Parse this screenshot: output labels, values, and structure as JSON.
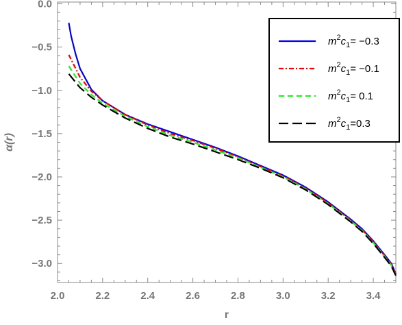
{
  "chart_data": {
    "type": "line",
    "title": "",
    "xlabel": "r",
    "ylabel": "α(r)",
    "xlim": [
      2.0,
      3.5
    ],
    "ylim": [
      -3.22,
      0.02
    ],
    "x_ticks": [
      2.0,
      2.2,
      2.4,
      2.6,
      2.8,
      3.0,
      3.2,
      3.4
    ],
    "x_tick_labels": [
      "2.0",
      "2.2",
      "2.4",
      "2.6",
      "2.8",
      "3.0",
      "3.2",
      "3.4"
    ],
    "y_ticks": [
      0.0,
      -0.5,
      -1.0,
      -1.5,
      -2.0,
      -2.5,
      -3.0
    ],
    "y_tick_labels": [
      "0.0",
      "−0.5",
      "−1.0",
      "−1.5",
      "−2.0",
      "−2.5",
      "−3.0"
    ],
    "grid": false,
    "legend_position": "top-right",
    "series": [
      {
        "name": "m²c₁= −0.3",
        "legend_parts": {
          "m": "m",
          "sup": "2",
          "c": "c",
          "sub": "1",
          "rest": "= −0.3"
        },
        "color": "#0000ee",
        "dash": "solid",
        "x": [
          2.05,
          2.06,
          2.08,
          2.1,
          2.15,
          2.2,
          2.3,
          2.4,
          2.5,
          2.6,
          2.7,
          2.8,
          2.9,
          3.0,
          3.1,
          3.2,
          3.3,
          3.35,
          3.4,
          3.45,
          3.48,
          3.5
        ],
        "y": [
          -0.22,
          -0.37,
          -0.58,
          -0.75,
          -0.99,
          -1.12,
          -1.28,
          -1.39,
          -1.48,
          -1.57,
          -1.66,
          -1.76,
          -1.87,
          -1.98,
          -2.12,
          -2.29,
          -2.49,
          -2.6,
          -2.74,
          -2.9,
          -3.0,
          -3.12
        ]
      },
      {
        "name": "m²c₁= −0.1",
        "legend_parts": {
          "m": "m",
          "sup": "2",
          "c": "c",
          "sub": "1",
          "rest": "= −0.1"
        },
        "color": "#ee0000",
        "dash": "dashdot",
        "x": [
          2.05,
          2.1,
          2.15,
          2.2,
          2.3,
          2.4,
          2.5,
          2.6,
          2.7,
          2.8,
          2.9,
          3.0,
          3.1,
          3.2,
          3.3,
          3.35,
          3.4,
          3.45,
          3.48,
          3.5
        ],
        "y": [
          -0.59,
          -0.85,
          -1.01,
          -1.12,
          -1.28,
          -1.4,
          -1.5,
          -1.58,
          -1.67,
          -1.77,
          -1.88,
          -1.99,
          -2.13,
          -2.3,
          -2.5,
          -2.61,
          -2.75,
          -2.91,
          -3.01,
          -3.12
        ]
      },
      {
        "name": "m²c₁= 0.1",
        "legend_parts": {
          "m": "m",
          "sup": "2",
          "c": "c",
          "sub": "1",
          "rest": "= 0.1"
        },
        "color": "#22ee22",
        "dash": "dashed",
        "x": [
          2.05,
          2.1,
          2.15,
          2.2,
          2.3,
          2.4,
          2.5,
          2.6,
          2.7,
          2.8,
          2.9,
          3.0,
          3.1,
          3.2,
          3.3,
          3.35,
          3.4,
          3.45,
          3.48,
          3.5
        ],
        "y": [
          -0.72,
          -0.92,
          -1.05,
          -1.15,
          -1.3,
          -1.42,
          -1.52,
          -1.6,
          -1.69,
          -1.78,
          -1.89,
          -2.0,
          -2.14,
          -2.31,
          -2.51,
          -2.62,
          -2.76,
          -2.92,
          -3.02,
          -3.14
        ]
      },
      {
        "name": "m²c₁=0.3",
        "legend_parts": {
          "m": "m",
          "sup": "2",
          "c": "c",
          "sub": "1",
          "rest": "=0.3"
        },
        "color": "#000000",
        "dash": "longdash",
        "x": [
          2.05,
          2.1,
          2.15,
          2.2,
          2.3,
          2.4,
          2.5,
          2.6,
          2.7,
          2.8,
          2.9,
          3.0,
          3.1,
          3.2,
          3.3,
          3.35,
          3.4,
          3.45,
          3.48,
          3.5
        ],
        "y": [
          -0.81,
          -0.97,
          -1.08,
          -1.17,
          -1.32,
          -1.44,
          -1.54,
          -1.62,
          -1.71,
          -1.8,
          -1.9,
          -2.01,
          -2.15,
          -2.32,
          -2.52,
          -2.63,
          -2.77,
          -2.93,
          -3.03,
          -3.14
        ]
      }
    ]
  }
}
